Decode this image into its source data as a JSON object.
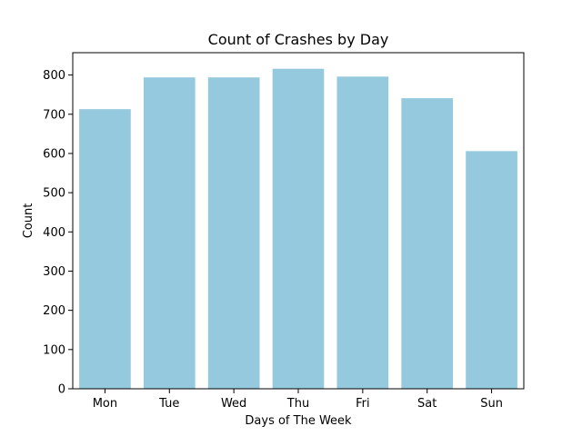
{
  "chart_data": {
    "type": "bar",
    "title": "Count of Crashes by Day",
    "xlabel": "Days of The Week",
    "ylabel": "Count",
    "categories": [
      "Mon",
      "Tue",
      "Wed",
      "Thu",
      "Fri",
      "Sat",
      "Sun"
    ],
    "values": [
      713,
      794,
      794,
      816,
      796,
      741,
      606
    ],
    "ylim": [
      0,
      857
    ],
    "yticks": [
      0,
      100,
      200,
      300,
      400,
      500,
      600,
      700,
      800
    ],
    "grid": false,
    "legend": "none",
    "bar_color": "#95c9de"
  }
}
